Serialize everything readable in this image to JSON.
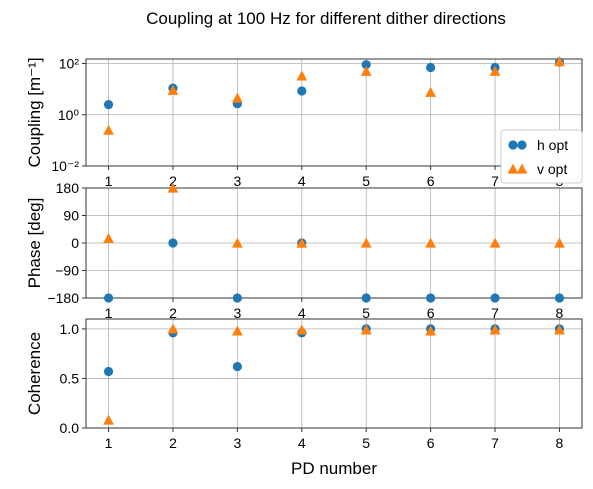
{
  "figure": {
    "title": "Coupling at 100 Hz for different dither directions",
    "xlabel": "PD number",
    "legend": {
      "placement": "right",
      "entries": [
        "h opt",
        "v opt"
      ]
    },
    "colors": {
      "h_opt": "#1f77b4",
      "v_opt": "#ff7f0e"
    }
  },
  "chart_data": [
    {
      "type": "scatter",
      "panel": "coupling",
      "ylabel": "Coupling [m⁻¹]",
      "yscale": "log",
      "ylim": [
        0.01,
        150
      ],
      "yticks": [
        0.01,
        1,
        100
      ],
      "ytick_labels": [
        "10⁻²",
        "10⁰",
        "10²"
      ],
      "x": [
        1,
        2,
        3,
        4,
        5,
        6,
        7,
        8
      ],
      "xtick_labels": [
        "1",
        "2",
        "3",
        "4",
        "5",
        "6",
        "7",
        "8"
      ],
      "grid": true,
      "series": [
        {
          "name": "h opt",
          "marker": "circle",
          "values": [
            2.5,
            11,
            2.7,
            8.5,
            90,
            70,
            70,
            115
          ]
        },
        {
          "name": "v opt",
          "marker": "triangle",
          "values": [
            0.25,
            9,
            4.5,
            33,
            50,
            7.5,
            50,
            120
          ]
        }
      ]
    },
    {
      "type": "scatter",
      "panel": "phase",
      "ylabel": "Phase [deg]",
      "ylim": [
        -180,
        180
      ],
      "yticks": [
        -180,
        -90,
        0,
        90,
        180
      ],
      "ytick_labels": [
        "−180",
        "−90",
        "0",
        "90",
        "180"
      ],
      "x": [
        1,
        2,
        3,
        4,
        5,
        6,
        7,
        8
      ],
      "xtick_labels": [
        "1",
        "2",
        "3",
        "4",
        "5",
        "6",
        "7",
        "8"
      ],
      "grid": true,
      "series": [
        {
          "name": "h opt",
          "marker": "circle",
          "values": [
            -180,
            0,
            -180,
            0,
            -180,
            -180,
            -180,
            -180
          ]
        },
        {
          "name": "v opt",
          "marker": "triangle",
          "values": [
            15,
            180,
            0,
            0,
            0,
            0,
            0,
            0
          ]
        }
      ]
    },
    {
      "type": "scatter",
      "panel": "coherence",
      "ylabel": "Coherence",
      "ylim": [
        0,
        1.1
      ],
      "yticks": [
        0,
        0.5,
        1
      ],
      "ytick_labels": [
        "0.0",
        "0.5",
        "1.0"
      ],
      "x": [
        1,
        2,
        3,
        4,
        5,
        6,
        7,
        8
      ],
      "xtick_labels": [
        "1",
        "2",
        "3",
        "4",
        "5",
        "6",
        "7",
        "8"
      ],
      "grid": true,
      "series": [
        {
          "name": "h opt",
          "marker": "circle",
          "values": [
            0.57,
            0.96,
            0.62,
            0.96,
            1.0,
            1.0,
            1.0,
            1.0
          ]
        },
        {
          "name": "v opt",
          "marker": "triangle",
          "values": [
            0.08,
            1.0,
            0.98,
            0.99,
            0.99,
            0.98,
            0.99,
            0.99
          ]
        }
      ]
    }
  ]
}
